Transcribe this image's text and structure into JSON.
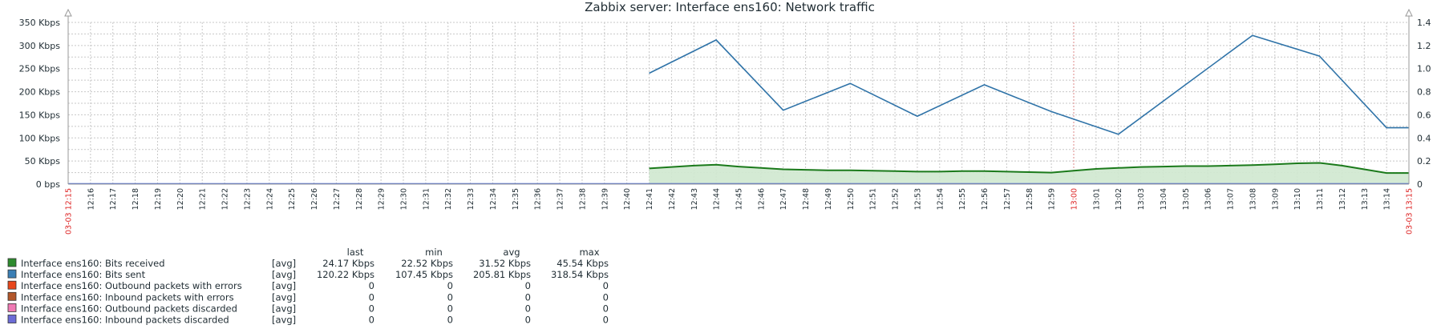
{
  "chart_data": {
    "type": "line",
    "title": "Zabbix server: Interface ens160: Network traffic",
    "y_left": {
      "ylim": [
        0,
        350
      ],
      "ticks": [
        0,
        50,
        100,
        150,
        200,
        250,
        300,
        350
      ],
      "tick_labels": [
        "0 bps",
        "50 Kbps",
        "100 Kbps",
        "150 Kbps",
        "200 Kbps",
        "250 Kbps",
        "300 Kbps",
        "350 Kbps"
      ]
    },
    "y_right": {
      "ylim": [
        0,
        1.4
      ],
      "ticks": [
        0,
        0.2,
        0.4,
        0.6,
        0.8,
        1.0,
        1.2,
        1.4
      ],
      "tick_labels": [
        "0",
        "0.2",
        "0.4",
        "0.6",
        "0.8",
        "1.0",
        "1.2",
        "1.4"
      ]
    },
    "x_start_label": "03-03 12:15",
    "x_end_label": "03-03 13:15",
    "x_tick_labels": [
      "12:16",
      "12:17",
      "12:18",
      "12:19",
      "12:20",
      "12:21",
      "12:22",
      "12:23",
      "12:24",
      "12:25",
      "12:26",
      "12:27",
      "12:28",
      "12:29",
      "12:30",
      "12:31",
      "12:32",
      "12:33",
      "12:34",
      "12:35",
      "12:36",
      "12:37",
      "12:38",
      "12:39",
      "12:40",
      "12:41",
      "12:42",
      "12:43",
      "12:44",
      "12:45",
      "12:46",
      "12:47",
      "12:48",
      "12:49",
      "12:50",
      "12:51",
      "12:52",
      "12:53",
      "12:54",
      "12:55",
      "12:56",
      "12:57",
      "12:58",
      "12:59",
      "13:00",
      "13:01",
      "13:02",
      "13:03",
      "13:04",
      "13:05",
      "13:06",
      "13:07",
      "13:08",
      "13:09",
      "13:10",
      "13:11",
      "13:12",
      "13:13",
      "13:14",
      "13:15"
    ],
    "x_highlight": "13:00",
    "grid": true,
    "series": [
      {
        "name": "Interface ens160: Bits received",
        "style": "filled-area",
        "color": "#1b7a1b",
        "fill": "#cfe8cf",
        "x": [
          "12:41",
          "12:42",
          "12:43",
          "12:44",
          "12:45",
          "12:46",
          "12:47",
          "12:48",
          "12:49",
          "12:50",
          "12:51",
          "12:52",
          "12:53",
          "12:54",
          "12:55",
          "12:56",
          "12:57",
          "12:58",
          "12:59",
          "13:00",
          "13:01",
          "13:02",
          "13:03",
          "13:04",
          "13:05",
          "13:06",
          "13:07",
          "13:08",
          "13:09",
          "13:10",
          "13:11",
          "13:12",
          "13:13",
          "13:14",
          "13:15"
        ],
        "values": [
          34,
          37,
          40,
          42,
          38,
          35,
          32,
          31,
          30,
          30,
          29,
          28,
          27,
          27,
          28,
          28,
          27,
          26,
          25,
          29,
          33,
          35,
          37,
          38,
          39,
          39,
          40,
          41,
          43,
          45,
          46,
          40,
          32,
          24,
          24
        ]
      },
      {
        "name": "Interface ens160: Bits sent",
        "style": "line",
        "color": "#2f73a8",
        "x": [
          "12:41",
          "12:44",
          "12:47",
          "12:50",
          "12:53",
          "12:56",
          "12:59",
          "13:02",
          "13:05",
          "13:08",
          "13:11",
          "13:14",
          "13:15"
        ],
        "values": [
          240,
          312,
          160,
          218,
          147,
          215,
          157,
          108,
          215,
          322,
          277,
          122,
          122
        ]
      }
    ],
    "legend": {
      "placement": "bottom-left",
      "headers": [
        "last",
        "min",
        "avg",
        "max"
      ],
      "rows": [
        {
          "name": "Interface ens160: Bits received",
          "color": "#2e8b2e",
          "func": "[avg]",
          "last": "24.17 Kbps",
          "min": "22.52 Kbps",
          "avg": "31.52 Kbps",
          "max": "45.54 Kbps"
        },
        {
          "name": "Interface ens160: Bits sent",
          "color": "#3b7fb5",
          "func": "[avg]",
          "last": "120.22 Kbps",
          "min": "107.45 Kbps",
          "avg": "205.81 Kbps",
          "max": "318.54 Kbps"
        },
        {
          "name": "Interface ens160: Outbound packets with errors",
          "color": "#e8461c",
          "func": "[avg]",
          "last": "0",
          "min": "0",
          "avg": "0",
          "max": "0"
        },
        {
          "name": "Interface ens160: Inbound packets with errors",
          "color": "#b2562a",
          "func": "[avg]",
          "last": "0",
          "min": "0",
          "avg": "0",
          "max": "0"
        },
        {
          "name": "Interface ens160: Outbound packets discarded",
          "color": "#f07ab4",
          "func": "[avg]",
          "last": "0",
          "min": "0",
          "avg": "0",
          "max": "0"
        },
        {
          "name": "Interface ens160: Inbound packets discarded",
          "color": "#6c6cd6",
          "func": "[avg]",
          "last": "0",
          "min": "0",
          "avg": "0",
          "max": "0"
        }
      ]
    }
  }
}
